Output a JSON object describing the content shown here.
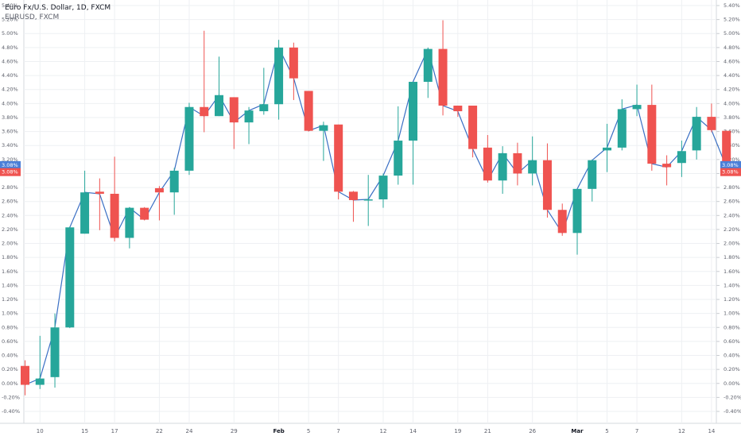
{
  "legend": {
    "title": "Euro Fx/U.S. Dollar, 1D, FXCM",
    "symbol": "EURUSD, FXCM"
  },
  "colors": {
    "up": "#26a69a",
    "down": "#ef5350",
    "line": "#3a6fc4",
    "grid": "#eef0f3",
    "axis_text": "#5d606b",
    "left_marker": "#4a7fd8",
    "right_marker": "#ef5350"
  },
  "price_markers": {
    "blue": "3.08%",
    "red": "3.08%"
  },
  "chart_data": {
    "type": "candlestick",
    "title": "Euro Fx/U.S. Dollar, 1D, FXCM",
    "series_name": "EURUSD, FXCM",
    "ylim": [
      -0.45,
      5.5
    ],
    "y_ticks": [
      "5.40%",
      "5.20%",
      "5.00%",
      "4.80%",
      "4.60%",
      "4.40%",
      "4.20%",
      "4.00%",
      "3.80%",
      "3.60%",
      "3.40%",
      "3.20%",
      "3.00%",
      "2.80%",
      "2.60%",
      "2.40%",
      "2.20%",
      "2.00%",
      "1.80%",
      "1.60%",
      "1.40%",
      "1.20%",
      "1.00%",
      "0.80%",
      "0.60%",
      "0.40%",
      "0.20%",
      "0.00%",
      "-0.20%",
      "-0.40%"
    ],
    "x_ticks": [
      {
        "label": "10",
        "index": 1
      },
      {
        "label": "15",
        "index": 4
      },
      {
        "label": "17",
        "index": 6
      },
      {
        "label": "22",
        "index": 9
      },
      {
        "label": "24",
        "index": 11
      },
      {
        "label": "29",
        "index": 14
      },
      {
        "label": "Feb",
        "index": 17
      },
      {
        "label": "5",
        "index": 19
      },
      {
        "label": "7",
        "index": 21
      },
      {
        "label": "12",
        "index": 24
      },
      {
        "label": "14",
        "index": 26
      },
      {
        "label": "19",
        "index": 29
      },
      {
        "label": "21",
        "index": 31
      },
      {
        "label": "26",
        "index": 34
      },
      {
        "label": "Mar",
        "index": 37
      },
      {
        "label": "5",
        "index": 39
      },
      {
        "label": "7",
        "index": 41
      },
      {
        "label": "12",
        "index": 44
      },
      {
        "label": "14",
        "index": 46
      }
    ],
    "candles": [
      {
        "o": 0.25,
        "h": 0.33,
        "l": -0.17,
        "c": -0.02
      },
      {
        "o": -0.02,
        "h": 0.68,
        "l": -0.08,
        "c": 0.07
      },
      {
        "o": 0.09,
        "h": 1.0,
        "l": -0.06,
        "c": 0.8
      },
      {
        "o": 0.8,
        "h": 2.24,
        "l": 0.79,
        "c": 2.23
      },
      {
        "o": 2.14,
        "h": 3.04,
        "l": 2.14,
        "c": 2.73
      },
      {
        "o": 2.74,
        "h": 2.93,
        "l": 2.19,
        "c": 2.71
      },
      {
        "o": 2.71,
        "h": 3.24,
        "l": 2.03,
        "c": 2.08
      },
      {
        "o": 2.08,
        "h": 2.52,
        "l": 1.93,
        "c": 2.51
      },
      {
        "o": 2.51,
        "h": 2.52,
        "l": 2.33,
        "c": 2.34
      },
      {
        "o": 2.79,
        "h": 2.82,
        "l": 2.33,
        "c": 2.73
      },
      {
        "o": 2.73,
        "h": 3.08,
        "l": 2.41,
        "c": 3.04
      },
      {
        "o": 3.04,
        "h": 4.01,
        "l": 2.98,
        "c": 3.95
      },
      {
        "o": 3.95,
        "h": 5.04,
        "l": 3.59,
        "c": 3.82
      },
      {
        "o": 3.82,
        "h": 4.67,
        "l": 3.82,
        "c": 4.12
      },
      {
        "o": 4.09,
        "h": 4.09,
        "l": 3.35,
        "c": 3.73
      },
      {
        "o": 3.73,
        "h": 3.95,
        "l": 3.42,
        "c": 3.9
      },
      {
        "o": 3.89,
        "h": 4.51,
        "l": 3.84,
        "c": 3.99
      },
      {
        "o": 3.99,
        "h": 4.91,
        "l": 3.77,
        "c": 4.8
      },
      {
        "o": 4.8,
        "h": 4.87,
        "l": 4.05,
        "c": 4.36
      },
      {
        "o": 4.18,
        "h": 4.18,
        "l": 3.6,
        "c": 3.61
      },
      {
        "o": 3.61,
        "h": 3.74,
        "l": 3.18,
        "c": 3.69
      },
      {
        "o": 3.7,
        "h": 3.7,
        "l": 2.63,
        "c": 2.74
      },
      {
        "o": 2.74,
        "h": 2.75,
        "l": 2.31,
        "c": 2.62
      },
      {
        "o": 2.62,
        "h": 2.98,
        "l": 2.25,
        "c": 2.63
      },
      {
        "o": 2.63,
        "h": 3.0,
        "l": 2.51,
        "c": 2.97
      },
      {
        "o": 2.97,
        "h": 3.96,
        "l": 2.84,
        "c": 3.47
      },
      {
        "o": 3.47,
        "h": 4.31,
        "l": 2.84,
        "c": 4.31
      },
      {
        "o": 4.31,
        "h": 4.8,
        "l": 4.08,
        "c": 4.78
      },
      {
        "o": 4.78,
        "h": 5.19,
        "l": 3.83,
        "c": 3.97
      },
      {
        "o": 3.97,
        "h": 3.97,
        "l": 3.81,
        "c": 3.89
      },
      {
        "o": 3.97,
        "h": 3.97,
        "l": 3.23,
        "c": 3.35
      },
      {
        "o": 3.37,
        "h": 3.55,
        "l": 2.87,
        "c": 2.9
      },
      {
        "o": 2.9,
        "h": 3.39,
        "l": 2.71,
        "c": 3.29
      },
      {
        "o": 3.29,
        "h": 3.44,
        "l": 2.83,
        "c": 3.0
      },
      {
        "o": 3.0,
        "h": 3.53,
        "l": 2.83,
        "c": 3.19
      },
      {
        "o": 3.19,
        "h": 3.43,
        "l": 2.37,
        "c": 2.48
      },
      {
        "o": 2.48,
        "h": 2.57,
        "l": 2.11,
        "c": 2.15
      },
      {
        "o": 2.15,
        "h": 2.78,
        "l": 1.84,
        "c": 2.78
      },
      {
        "o": 2.78,
        "h": 3.2,
        "l": 2.6,
        "c": 3.19
      },
      {
        "o": 3.33,
        "h": 3.71,
        "l": 3.02,
        "c": 3.37
      },
      {
        "o": 3.37,
        "h": 4.06,
        "l": 3.33,
        "c": 3.92
      },
      {
        "o": 3.92,
        "h": 4.27,
        "l": 3.82,
        "c": 3.98
      },
      {
        "o": 3.98,
        "h": 4.27,
        "l": 3.04,
        "c": 3.14
      },
      {
        "o": 3.14,
        "h": 3.26,
        "l": 2.83,
        "c": 3.09
      },
      {
        "o": 3.15,
        "h": 3.47,
        "l": 2.95,
        "c": 3.32
      },
      {
        "o": 3.33,
        "h": 3.95,
        "l": 3.2,
        "c": 3.81
      },
      {
        "o": 3.81,
        "h": 4.0,
        "l": 3.59,
        "c": 3.62
      },
      {
        "o": 3.61,
        "h": 3.61,
        "l": 3.07,
        "c": 3.09
      }
    ]
  }
}
